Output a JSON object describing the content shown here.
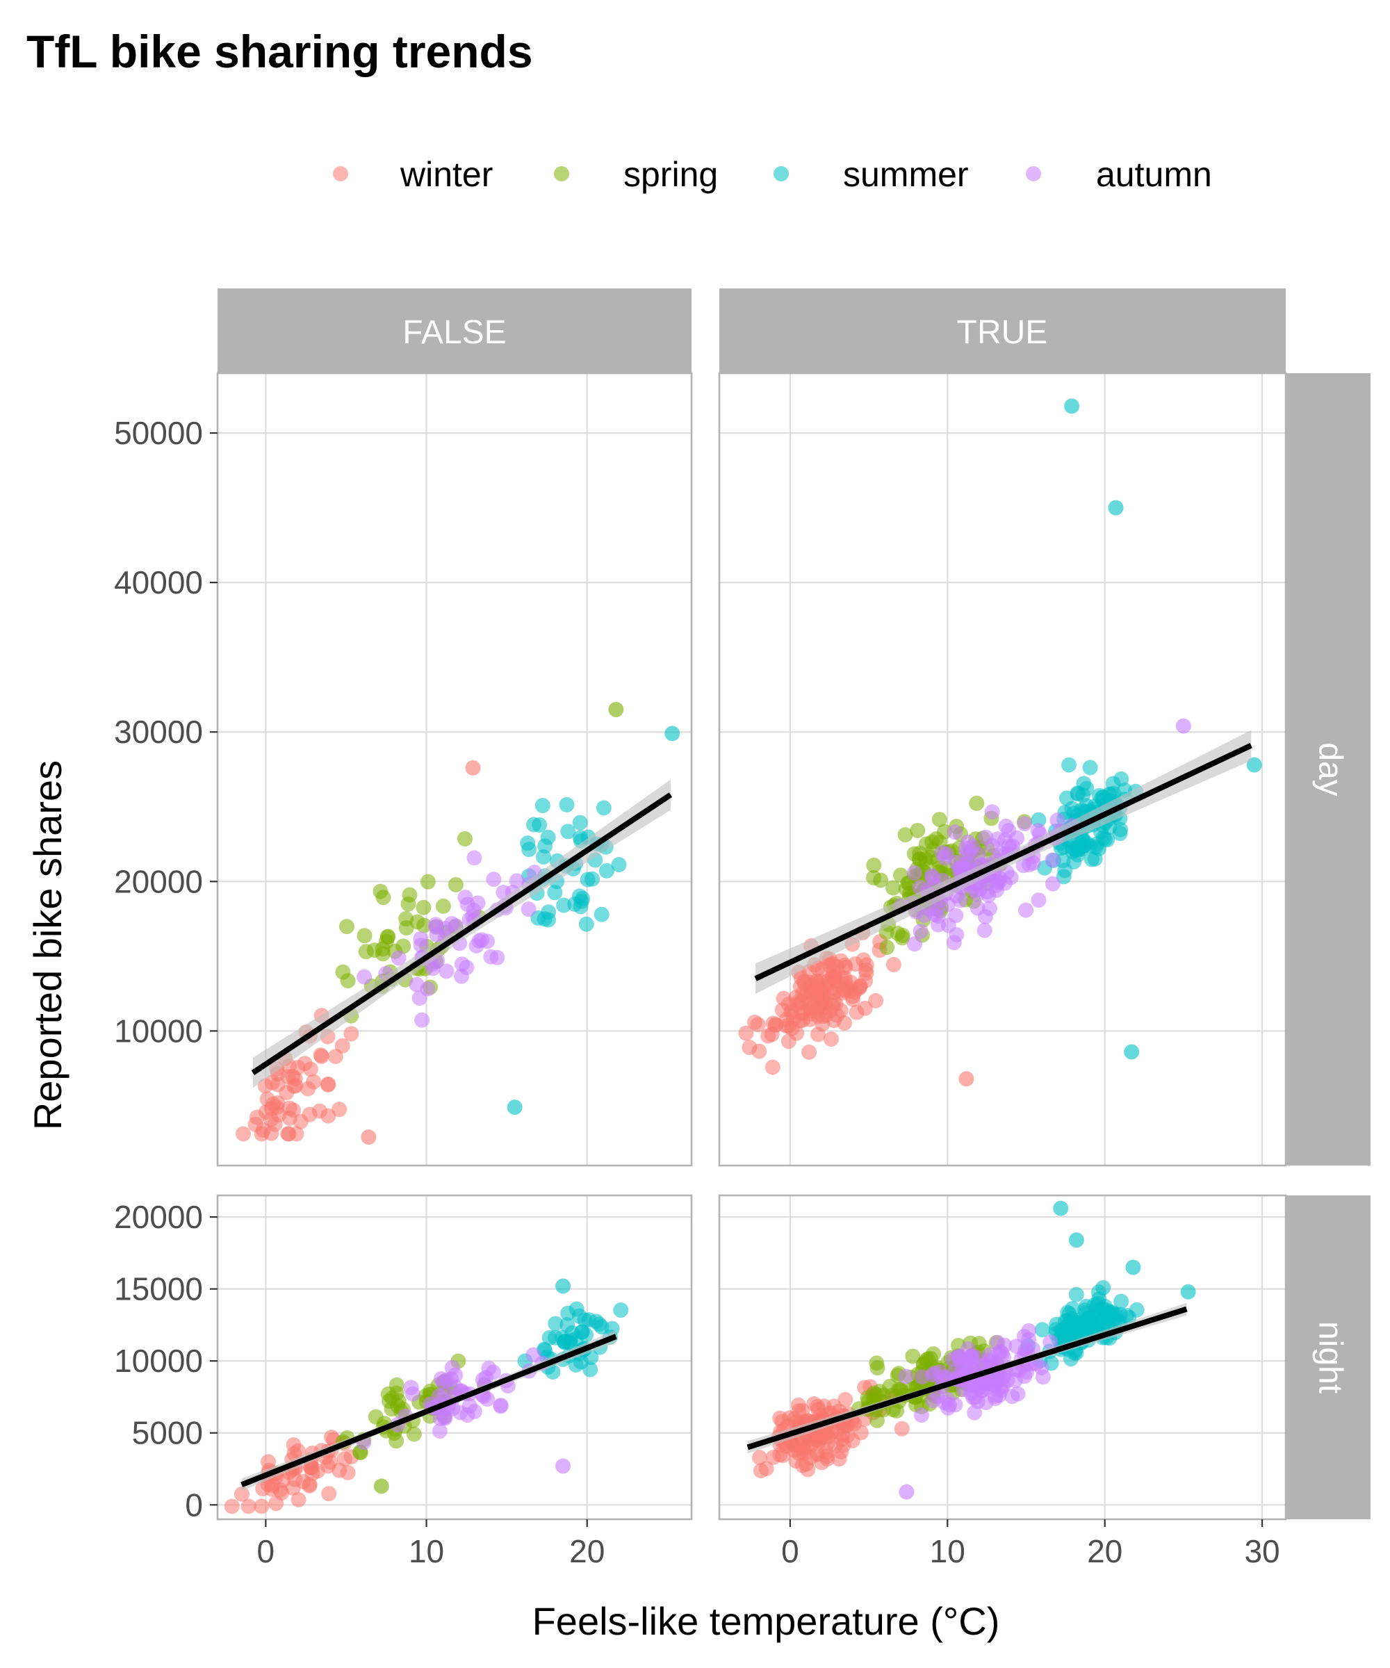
{
  "colors": {
    "winter": "#F8766D",
    "spring": "#7CAE00",
    "summer": "#00BFC4",
    "autumn": "#C77CFF",
    "strip_bg": "#B3B3B3",
    "grid": "#DDDDDD",
    "fit_line": "#000000",
    "ribbon": "#BFBFBF"
  },
  "chart_data": {
    "type": "scatter",
    "title": "TfL bike sharing trends",
    "xlabel": "Feels-like temperature (°C)",
    "ylabel": "Reported bike shares",
    "legend": {
      "position": "top",
      "entries": [
        "winter",
        "spring",
        "summer",
        "autumn"
      ]
    },
    "facet_cols": [
      "FALSE",
      "TRUE"
    ],
    "facet_rows": [
      "day",
      "night"
    ],
    "x_ticks": [
      0,
      10,
      20,
      30
    ],
    "x_tick_labels": [
      "0",
      "10",
      "20",
      "30"
    ],
    "row_axes": {
      "day": {
        "ticks": [
          10000,
          20000,
          30000,
          40000,
          50000
        ],
        "tick_labels": [
          "10000",
          "20000",
          "30000",
          "40000",
          "50000"
        ],
        "ylim": [
          1000,
          54000
        ]
      },
      "night": {
        "ticks": [
          0,
          5000,
          10000,
          15000,
          20000
        ],
        "tick_labels": [
          "0",
          "5000",
          "10000",
          "15000",
          "20000"
        ],
        "ylim": [
          -1000,
          21500
        ]
      }
    },
    "col_axes": {
      "FALSE": {
        "xlim": [
          -3,
          26.5
        ]
      },
      "TRUE": {
        "xlim": [
          -4.5,
          31.5
        ]
      }
    },
    "panels": [
      {
        "col": "FALSE",
        "row": "day",
        "fit": {
          "x": [
            -0.8,
            25.2
          ],
          "y": [
            7200,
            25800
          ]
        },
        "outliers": [
          {
            "season": "winter",
            "x": 6.4,
            "y": 2900
          },
          {
            "season": "winter",
            "x": 12.9,
            "y": 27600
          },
          {
            "season": "spring",
            "x": 21.8,
            "y": 31500
          },
          {
            "season": "summer",
            "x": 25.3,
            "y": 29900
          },
          {
            "season": "summer",
            "x": 15.5,
            "y": 4900
          }
        ]
      },
      {
        "col": "TRUE",
        "row": "day",
        "fit": {
          "x": [
            -2.2,
            29.3
          ],
          "y": [
            13500,
            29100
          ]
        },
        "outliers": [
          {
            "season": "summer",
            "x": 17.9,
            "y": 51800
          },
          {
            "season": "summer",
            "x": 20.7,
            "y": 45000
          },
          {
            "season": "summer",
            "x": 21.7,
            "y": 8600
          },
          {
            "season": "winter",
            "x": 11.2,
            "y": 6800
          },
          {
            "season": "summer",
            "x": 29.5,
            "y": 27800
          },
          {
            "season": "autumn",
            "x": 25.0,
            "y": 30400
          }
        ]
      },
      {
        "col": "FALSE",
        "row": "night",
        "fit": {
          "x": [
            -1.5,
            21.8
          ],
          "y": [
            1400,
            11700
          ]
        },
        "outliers": [
          {
            "season": "summer",
            "x": 18.5,
            "y": 15200
          },
          {
            "season": "autumn",
            "x": 18.5,
            "y": 2700
          },
          {
            "season": "spring",
            "x": 7.2,
            "y": 1300
          }
        ]
      },
      {
        "col": "TRUE",
        "row": "night",
        "fit": {
          "x": [
            -2.7,
            25.2
          ],
          "y": [
            4000,
            13600
          ]
        },
        "outliers": [
          {
            "season": "summer",
            "x": 17.2,
            "y": 20600
          },
          {
            "season": "summer",
            "x": 18.2,
            "y": 18400
          },
          {
            "season": "summer",
            "x": 21.8,
            "y": 16500
          },
          {
            "season": "autumn",
            "x": 7.4,
            "y": 900
          },
          {
            "season": "summer",
            "x": 25.3,
            "y": 14800
          }
        ]
      }
    ]
  }
}
